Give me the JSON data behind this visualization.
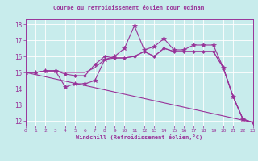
{
  "title": "Courbe du refroidissement éolien pour Odiham",
  "xlabel": "Windchill (Refroidissement éolien,°C)",
  "xlim": [
    0,
    23
  ],
  "ylim": [
    11.7,
    18.3
  ],
  "yticks": [
    12,
    13,
    14,
    15,
    16,
    17,
    18
  ],
  "xticks": [
    0,
    1,
    2,
    3,
    4,
    5,
    6,
    7,
    8,
    9,
    10,
    11,
    12,
    13,
    14,
    15,
    16,
    17,
    18,
    19,
    20,
    21,
    22,
    23
  ],
  "bg_color": "#c8ecec",
  "line_color": "#993399",
  "grid_color": "#ffffff",
  "series": {
    "line_diagonal": {
      "x": [
        0,
        23
      ],
      "y": [
        15.0,
        11.9
      ]
    },
    "line_smooth": {
      "x": [
        0,
        1,
        2,
        3,
        4,
        5,
        6,
        7,
        8,
        9,
        10,
        11,
        12,
        13,
        14,
        15,
        16,
        17,
        18,
        19,
        20,
        21,
        22,
        23
      ],
      "y": [
        15.0,
        15.0,
        15.1,
        15.1,
        15.0,
        15.0,
        15.0,
        15.3,
        15.8,
        15.9,
        15.9,
        16.0,
        16.3,
        16.0,
        16.5,
        16.3,
        16.3,
        16.3,
        16.3,
        16.3,
        15.3,
        13.5,
        12.1,
        11.9
      ]
    },
    "line_diamond": {
      "x": [
        0,
        1,
        2,
        3,
        4,
        5,
        6,
        7,
        8,
        9,
        10,
        11,
        12,
        13,
        14,
        15,
        16,
        17,
        18,
        19,
        20,
        21,
        22,
        23
      ],
      "y": [
        15.0,
        15.0,
        15.1,
        15.1,
        14.9,
        14.8,
        14.8,
        15.5,
        16.0,
        15.9,
        15.9,
        16.0,
        16.3,
        16.0,
        16.5,
        16.3,
        16.3,
        16.3,
        16.3,
        16.3,
        15.3,
        13.5,
        12.1,
        11.9
      ]
    },
    "line_star": {
      "x": [
        0,
        1,
        2,
        3,
        4,
        5,
        6,
        7,
        8,
        9,
        10,
        11,
        12,
        13,
        14,
        15,
        16,
        17,
        18,
        19,
        20,
        21,
        22,
        23
      ],
      "y": [
        15.0,
        15.0,
        15.1,
        15.1,
        14.1,
        14.3,
        14.3,
        14.5,
        15.8,
        16.0,
        16.5,
        17.9,
        16.4,
        16.6,
        17.1,
        16.4,
        16.4,
        16.7,
        16.7,
        16.7,
        15.3,
        13.5,
        12.1,
        11.9
      ]
    }
  }
}
